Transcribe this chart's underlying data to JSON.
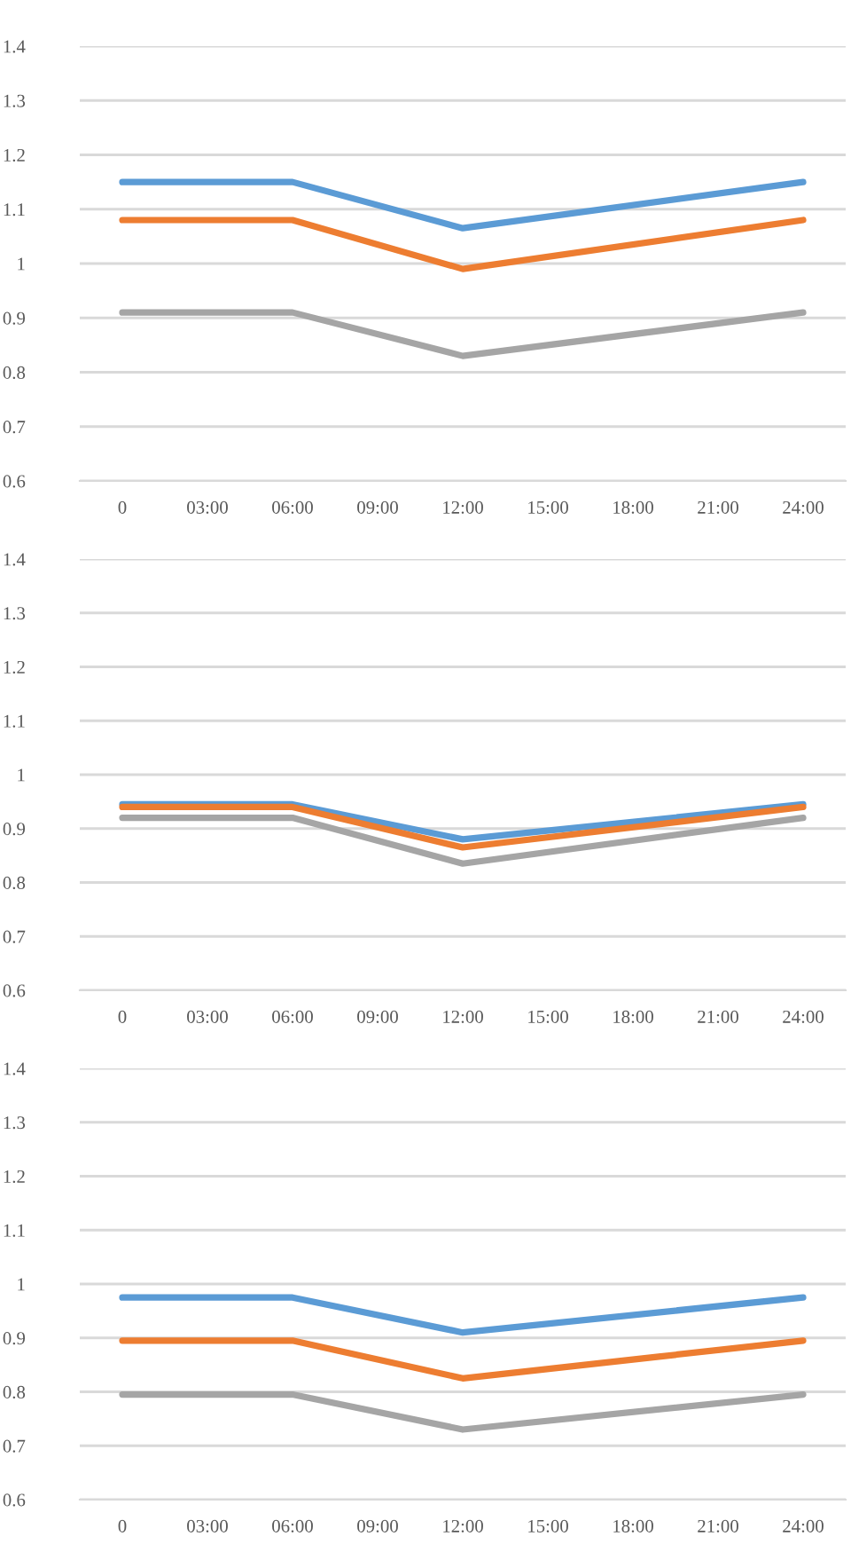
{
  "chart_data": [
    {
      "type": "line",
      "xlim": [
        -1.5,
        25.5
      ],
      "ylim": [
        0.6,
        1.4
      ],
      "grid": "y",
      "xticks": [
        0,
        {
          "value": 3,
          "label": "03:00"
        },
        {
          "value": 6,
          "label": "06:00"
        },
        {
          "value": 9,
          "label": "09:00"
        },
        {
          "value": 12,
          "label": "12:00"
        },
        {
          "value": 15,
          "label": "15:00"
        },
        {
          "value": 18,
          "label": "18:00"
        },
        {
          "value": 21,
          "label": "21:00"
        },
        {
          "value": 24,
          "label": "24:00"
        }
      ],
      "yticks": [
        0.6,
        0.7,
        0.8,
        0.9,
        1,
        1.1,
        1.2,
        1.3,
        1.4
      ],
      "series": [
        {
          "color": "#5b9bd5",
          "x": [
            0,
            6,
            12,
            24
          ],
          "values": [
            1.15,
            1.15,
            1.065,
            1.15
          ]
        },
        {
          "color": "#ed7d31",
          "x": [
            0,
            6,
            12,
            24
          ],
          "values": [
            1.08,
            1.08,
            0.99,
            1.08
          ]
        },
        {
          "color": "#a5a5a5",
          "x": [
            0,
            6,
            12,
            24
          ],
          "values": [
            0.91,
            0.91,
            0.83,
            0.91
          ]
        }
      ]
    },
    {
      "type": "line",
      "xlim": [
        -1.5,
        25.5
      ],
      "ylim": [
        0.6,
        1.4
      ],
      "grid": "y",
      "xticks": [
        0,
        {
          "value": 3,
          "label": "03:00"
        },
        {
          "value": 6,
          "label": "06:00"
        },
        {
          "value": 9,
          "label": "09:00"
        },
        {
          "value": 12,
          "label": "12:00"
        },
        {
          "value": 15,
          "label": "15:00"
        },
        {
          "value": 18,
          "label": "18:00"
        },
        {
          "value": 21,
          "label": "21:00"
        },
        {
          "value": 24,
          "label": "24:00"
        }
      ],
      "yticks": [
        0.6,
        0.7,
        0.8,
        0.9,
        1,
        1.1,
        1.2,
        1.3,
        1.4
      ],
      "series": [
        {
          "color": "#5b9bd5",
          "x": [
            0,
            6,
            12,
            24
          ],
          "values": [
            0.945,
            0.945,
            0.88,
            0.945
          ]
        },
        {
          "color": "#ed7d31",
          "x": [
            0,
            6,
            12,
            24
          ],
          "values": [
            0.94,
            0.94,
            0.865,
            0.94
          ]
        },
        {
          "color": "#a5a5a5",
          "x": [
            0,
            6,
            12,
            24
          ],
          "values": [
            0.92,
            0.92,
            0.835,
            0.92
          ]
        }
      ]
    },
    {
      "type": "line",
      "xlim": [
        -1.5,
        25.5
      ],
      "ylim": [
        0.6,
        1.4
      ],
      "grid": "y",
      "xticks": [
        0,
        {
          "value": 3,
          "label": "03:00"
        },
        {
          "value": 6,
          "label": "06:00"
        },
        {
          "value": 9,
          "label": "09:00"
        },
        {
          "value": 12,
          "label": "12:00"
        },
        {
          "value": 15,
          "label": "15:00"
        },
        {
          "value": 18,
          "label": "18:00"
        },
        {
          "value": 21,
          "label": "21:00"
        },
        {
          "value": 24,
          "label": "24:00"
        }
      ],
      "yticks": [
        0.6,
        0.7,
        0.8,
        0.9,
        1,
        1.1,
        1.2,
        1.3,
        1.4
      ],
      "series": [
        {
          "color": "#5b9bd5",
          "x": [
            0,
            6,
            12,
            24
          ],
          "values": [
            0.975,
            0.975,
            0.91,
            0.975
          ]
        },
        {
          "color": "#ed7d31",
          "x": [
            0,
            6,
            12,
            24
          ],
          "values": [
            0.895,
            0.895,
            0.825,
            0.895
          ]
        },
        {
          "color": "#a5a5a5",
          "x": [
            0,
            6,
            12,
            24
          ],
          "values": [
            0.795,
            0.795,
            0.73,
            0.795
          ]
        }
      ]
    }
  ]
}
